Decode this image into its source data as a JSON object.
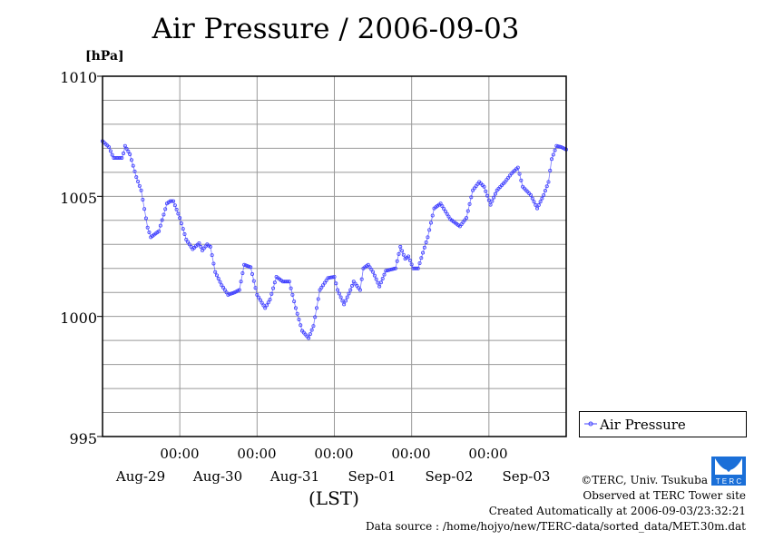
{
  "chart_data": {
    "type": "line",
    "title": "Air Pressure / 2006-09-03",
    "ylabel": "[hPa]",
    "xlabel": "(LST)",
    "ylim": [
      995,
      1010
    ],
    "yticks": [
      "995",
      "1000",
      "1005",
      "1010"
    ],
    "xlim_hours": [
      0,
      144
    ],
    "x_time_ticks": [
      "00:00",
      "00:00",
      "00:00",
      "00:00",
      "00:00"
    ],
    "x_date_labels": [
      "Aug-29",
      "Aug-30",
      "Aug-31",
      "Sep-01",
      "Sep-02",
      "Sep-03"
    ],
    "grid": true,
    "legend_position": "bottom-right-outside",
    "series": [
      {
        "name": "Air Pressure",
        "color": "#4040ff",
        "x_hours": [
          0,
          2,
          3.4,
          6.2,
          7,
          8.5,
          10.5,
          12,
          14,
          15,
          17.5,
          20,
          21,
          22,
          24,
          26,
          28,
          30,
          31,
          32.5,
          33.5,
          35,
          37,
          39,
          41,
          42.5,
          44,
          46,
          48,
          50.5,
          52,
          54,
          56,
          58,
          60,
          62,
          64,
          65.5,
          67.5,
          70,
          72,
          73,
          75,
          77,
          78,
          80,
          81,
          82.5,
          84,
          86,
          88,
          91,
          92.5,
          94,
          95,
          96.5,
          98,
          101,
          103,
          105,
          108,
          111,
          113,
          115,
          117,
          118.5,
          120.5,
          122.5,
          125,
          127,
          129,
          130.5,
          133,
          135,
          137,
          138.5,
          139.5,
          141,
          142.5,
          144
        ],
        "values": [
          1007.3,
          1007.05,
          1006.6,
          1006.6,
          1007.1,
          1006.75,
          1005.8,
          1005.25,
          1003.7,
          1003.3,
          1003.55,
          1004.7,
          1004.8,
          1004.8,
          1004.1,
          1003.2,
          1002.8,
          1003.05,
          1002.75,
          1003.0,
          1002.9,
          1001.85,
          1001.3,
          1000.9,
          1001.0,
          1001.1,
          1002.15,
          1002.05,
          1000.9,
          1000.35,
          1000.7,
          1001.65,
          1001.45,
          1001.45,
          1000.35,
          999.4,
          999.1,
          999.6,
          1001.1,
          1001.6,
          1001.65,
          1001.1,
          1000.5,
          1001.1,
          1001.45,
          1001.1,
          1002.0,
          1002.15,
          1001.85,
          1001.25,
          1001.9,
          1002.0,
          1002.9,
          1002.4,
          1002.5,
          1002.0,
          1002.0,
          1003.3,
          1004.5,
          1004.7,
          1004.05,
          1003.75,
          1004.1,
          1005.25,
          1005.6,
          1005.4,
          1004.65,
          1005.25,
          1005.6,
          1005.95,
          1006.2,
          1005.4,
          1005.05,
          1004.5,
          1005.05,
          1005.6,
          1006.55,
          1007.1,
          1007.05,
          1006.95
        ]
      }
    ]
  },
  "credits": {
    "copyright": "©TERC, Univ. Tsukuba",
    "observed": "Observed at TERC Tower site",
    "created": "Created Automatically at 2006-09-03/23:32:21",
    "source": "Data source : /home/hojyo/new/TERC-data/sorted_data/MET.30m.dat",
    "logo_text": "TERC"
  }
}
